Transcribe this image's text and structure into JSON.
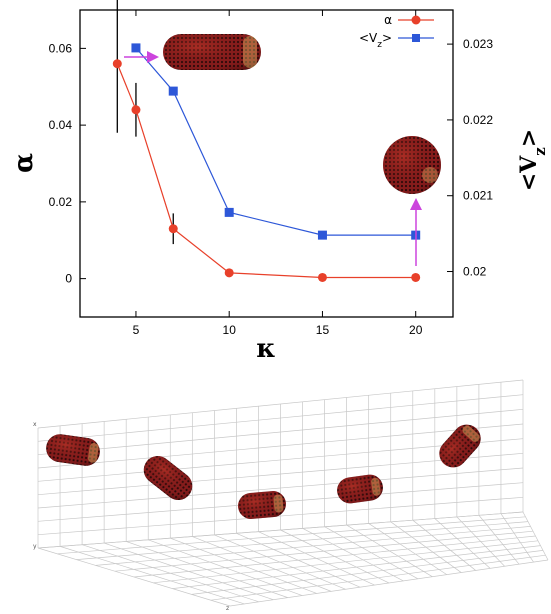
{
  "chart_data": [
    {
      "type": "line",
      "title": "",
      "xlabel": "κ",
      "x_ticks": [
        "5",
        "10",
        "15",
        "20"
      ],
      "x_tick_values": [
        5,
        10,
        15,
        20
      ],
      "xlim": [
        2,
        22
      ],
      "y_axes": [
        {
          "side": "left",
          "label": "α",
          "ylim": [
            -0.01,
            0.07
          ],
          "ticks": [
            "0",
            "0.02",
            "0.04",
            "0.06"
          ],
          "tick_values": [
            0,
            0.02,
            0.04,
            0.06
          ]
        },
        {
          "side": "right",
          "label": "<Vz>",
          "label_main": "<V",
          "label_sub": "z",
          "label_end": ">",
          "ylim": [
            0.0194,
            0.02345
          ],
          "ticks": [
            "0.02",
            "0.021",
            "0.022",
            "0.023"
          ],
          "tick_values": [
            0.02,
            0.021,
            0.022,
            0.023
          ]
        }
      ],
      "series": [
        {
          "name": "α",
          "axis": "left",
          "color": "#e8402a",
          "marker": "circle",
          "x": [
            4,
            5,
            7,
            10,
            15,
            20
          ],
          "y": [
            0.056,
            0.044,
            0.013,
            0.0015,
            0.0003,
            0.0003
          ],
          "error": [
            0.018,
            0.007,
            0.004,
            0.0008,
            0.0003,
            0.0003
          ]
        },
        {
          "name": "<Vz>",
          "name_main": "<V",
          "name_sub": "z",
          "name_end": ">",
          "axis": "right",
          "color": "#2d57d8",
          "marker": "square",
          "x": [
            5,
            7,
            10,
            15,
            20
          ],
          "y": [
            0.02295,
            0.02238,
            0.02078,
            0.02048,
            0.02048
          ]
        }
      ],
      "legend_position": "top-right",
      "grid": false,
      "annotation_color": "#cc44dd"
    },
    {
      "type": "other",
      "description_visible": "3D perspective grid with five spherocylinder particles",
      "axis_letters": [
        "x",
        "y",
        "z"
      ]
    }
  ],
  "colors": {
    "particle_fill": "#8a1d1d",
    "particle_dot": "#1a0a0a",
    "particle_highlight": "#ffe27a",
    "grid_line": "#cccccc"
  }
}
